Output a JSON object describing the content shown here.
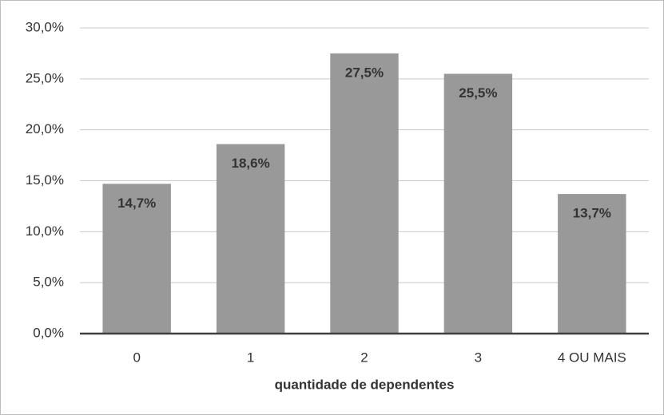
{
  "chart_data": {
    "type": "bar",
    "x_label": "quantidade de dependentes",
    "categories": [
      "0",
      "1",
      "2",
      "3",
      "4 OU MAIS"
    ],
    "values": [
      14.7,
      18.6,
      27.5,
      25.5,
      13.7
    ],
    "value_labels": [
      "14,7%",
      "18,6%",
      "27,5%",
      "25,5%",
      "13,7%"
    ],
    "color": "#999999",
    "ylim": [
      0,
      30
    ],
    "yticks": [
      {
        "value": 0,
        "label": "0,0%"
      },
      {
        "value": 5,
        "label": "5,0%"
      },
      {
        "value": 10,
        "label": "10,0%"
      },
      {
        "value": 15,
        "label": "15,0%"
      },
      {
        "value": 20,
        "label": "20,0%"
      },
      {
        "value": 25,
        "label": "25,0%"
      },
      {
        "value": 30,
        "label": "30,0%"
      }
    ],
    "grid": true
  }
}
